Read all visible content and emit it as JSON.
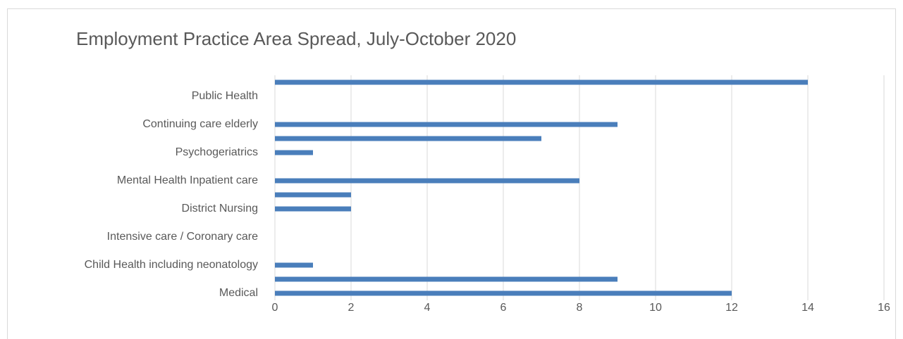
{
  "chart_data": {
    "type": "bar",
    "orientation": "horizontal",
    "title": "Employment Practice Area Spread, July-October 2020",
    "categories": [
      "Medical",
      null,
      "Child Health including neonatology",
      null,
      "Intensive care / Coronary care",
      null,
      "District Nursing",
      null,
      "Mental Health Inpatient care",
      null,
      "Psychogeriatrics",
      null,
      "Continuing care elderly",
      null,
      "Public Health",
      null
    ],
    "values": [
      12,
      9,
      1,
      0,
      0,
      0,
      2,
      2,
      8,
      0,
      1,
      7,
      9,
      0,
      0,
      14
    ],
    "color": "#4a7ebb",
    "xlim": [
      0,
      16
    ],
    "xticks": [
      0,
      2,
      4,
      6,
      8,
      10,
      12,
      14,
      16
    ],
    "grid": true
  }
}
